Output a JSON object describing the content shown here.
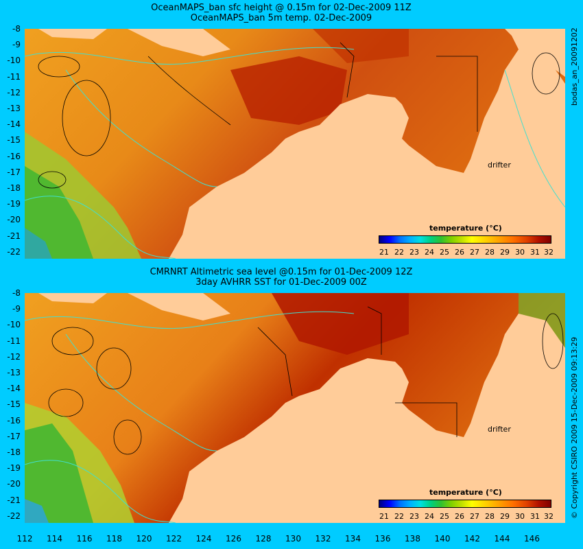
{
  "panel1": {
    "title_line1": "OceanMAPS_ban sfc height @ 0.15m for 02-Dec-2009 11Z",
    "title_line2": "OceanMAPS_ban 5m temp. 02-Dec-2009",
    "side_label": "bodas_an_20091202",
    "drifter_label": "drifter"
  },
  "panel2": {
    "title_line1": "CMRNRT Altimetric sea level  @0.15m  for 01-Dec-2009 12Z",
    "title_line2": "3day AVHRR SST for 01-Dec-2009 00Z",
    "side_label": "© Copyright CSIRO 2009  15-Dec-2009 09:13:29",
    "drifter_label": "drifter"
  },
  "colorbar": {
    "title": "temperature (°C)",
    "ticks": [
      "21",
      "22",
      "23",
      "24",
      "25",
      "26",
      "27",
      "28",
      "29",
      "30",
      "31",
      "32"
    ]
  },
  "y_ticks": [
    "-8",
    "-9",
    "-10",
    "-11",
    "-12",
    "-13",
    "-14",
    "-15",
    "-16",
    "-17",
    "-18",
    "-19",
    "-20",
    "-21",
    "-22"
  ],
  "x_ticks": [
    "112",
    "114",
    "116",
    "118",
    "120",
    "122",
    "124",
    "126",
    "128",
    "130",
    "132",
    "134",
    "136",
    "138",
    "140",
    "142",
    "144",
    "146"
  ],
  "colors": {
    "background": "#00ccff",
    "land": "#ffcc99",
    "sea_warm": "#e07010",
    "sea_hot": "#b82000",
    "sea_mid": "#f0a020",
    "sea_cool": "#60c030",
    "contour_cyan": "#40e0d0"
  }
}
